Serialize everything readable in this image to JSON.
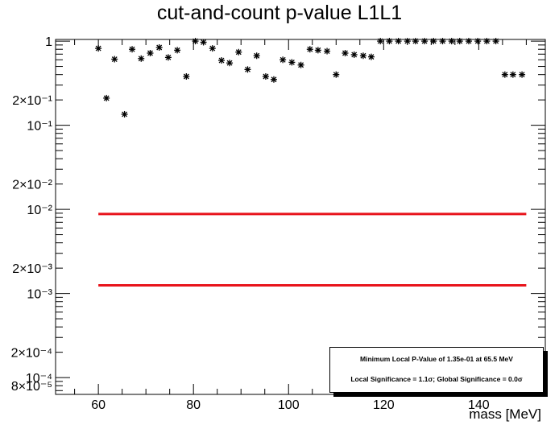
{
  "chart_data": {
    "type": "scatter",
    "title": "cut-and-count p-value L1L1",
    "xlabel": "mass [MeV]",
    "ylabel": "",
    "xlim": [
      51,
      674
    ],
    "ylim_log10": [
      -4.2,
      0.02
    ],
    "y_log_scale": true,
    "grid": false,
    "x_ticks": [
      {
        "value": 60,
        "label": "60"
      },
      {
        "value": 80,
        "label": "80"
      },
      {
        "value": 100,
        "label": "100"
      },
      {
        "value": 120,
        "label": "120"
      },
      {
        "value": 140,
        "label": "140"
      }
    ],
    "y_ticks": [
      {
        "value": 1,
        "label": "1"
      },
      {
        "value": 0.2,
        "label": "2×10⁻¹"
      },
      {
        "value": 0.1,
        "label": "10⁻¹"
      },
      {
        "value": 0.02,
        "label": "2×10⁻²"
      },
      {
        "value": 0.01,
        "label": "10⁻²"
      },
      {
        "value": 0.002,
        "label": "2×10⁻³"
      },
      {
        "value": 0.001,
        "label": "10⁻³"
      },
      {
        "value": 0.0002,
        "label": "2×10⁻⁴"
      },
      {
        "value": 0.0001,
        "label": "10⁻⁴"
      },
      {
        "value": 8e-05,
        "label": "8×10⁻⁵"
      }
    ],
    "x_range_mm": [
      51,
      154
    ],
    "points_x": [
      60.0,
      61.7,
      63.4,
      65.5,
      67.1,
      69.0,
      70.9,
      72.8,
      74.7,
      76.6,
      78.5,
      80.4,
      82.1,
      84.0,
      85.9,
      87.6,
      89.5,
      91.4,
      93.3,
      95.2,
      96.9,
      98.8,
      100.7,
      102.6,
      104.5,
      106.2,
      108.1,
      110.0,
      111.9,
      113.8,
      115.7,
      117.4,
      119.3,
      121.2,
      123.1,
      125.0,
      126.7,
      128.6,
      130.5,
      132.4,
      134.3,
      136.0,
      137.9,
      139.8,
      141.7,
      143.6,
      145.5,
      147.2,
      149.1
    ],
    "points_y": [
      0.82,
      0.21,
      0.61,
      0.135,
      0.8,
      0.62,
      0.72,
      0.84,
      0.64,
      0.78,
      0.38,
      1,
      0.97,
      0.82,
      0.59,
      0.55,
      0.74,
      0.46,
      0.67,
      0.38,
      0.35,
      0.6,
      0.56,
      0.52,
      0.8,
      0.78,
      0.76,
      0.4,
      0.72,
      0.69,
      0.67,
      0.65,
      1,
      1,
      1,
      1,
      1,
      1,
      1,
      1,
      1,
      1,
      1,
      1,
      1,
      1,
      0.4,
      0.4,
      0.4
    ],
    "threshold_lines": [
      {
        "value": 0.0088,
        "color": "#e8141b",
        "x_range": [
          60,
          150
        ]
      },
      {
        "value": 0.00125,
        "color": "#e8141b",
        "x_range": [
          60,
          150
        ]
      }
    ]
  },
  "stats_box": {
    "line1": "Minimum Local P-Value of 1.35e-01 at 65.5 MeV",
    "line2": "Local Significance = 1.1σ; Global Significance = 0.0σ"
  },
  "colors": {
    "marker": "#000000",
    "line": "#e8141b",
    "axis": "#000000"
  }
}
